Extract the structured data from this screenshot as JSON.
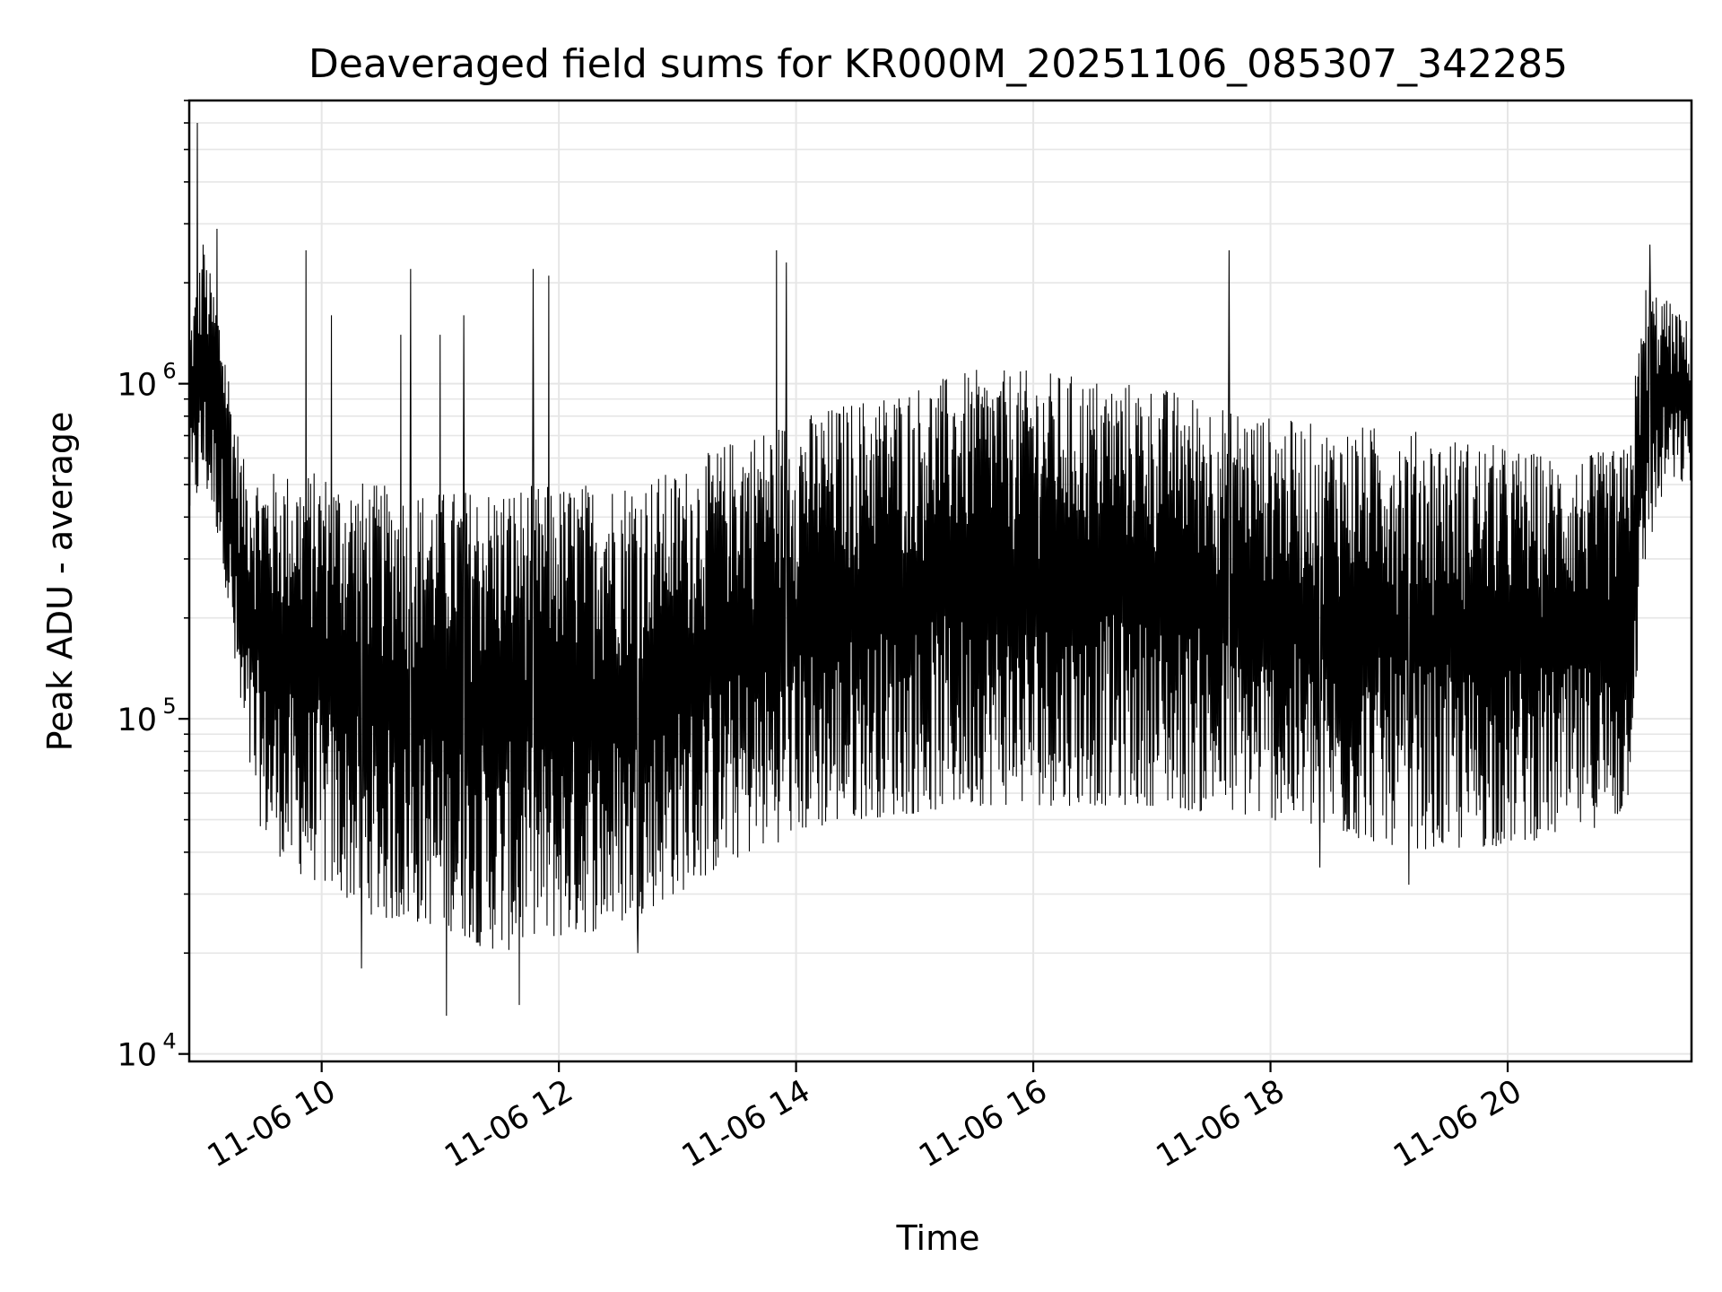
{
  "chart_data": {
    "type": "line",
    "title": "Deaveraged field sums for KR000M_20251106_085307_342285",
    "xlabel": "Time",
    "ylabel": "Peak ADU - average",
    "xlim": [
      "2025-11-06 08:53",
      "2025-11-06 21:33"
    ],
    "ylim": [
      9500,
      7000000
    ],
    "yscale": "log",
    "grid": true,
    "line_color": "#000000",
    "grid_color": "#e6e6e6",
    "x_ticks": [
      "2025-11-06 10:00",
      "2025-11-06 12:00",
      "2025-11-06 14:00",
      "2025-11-06 16:00",
      "2025-11-06 18:00",
      "2025-11-06 20:00"
    ],
    "x_tick_labels": [
      "11-06 10",
      "11-06 12",
      "11-06 14",
      "11-06 16",
      "11-06 18",
      "11-06 20"
    ],
    "y_ticks": [
      10000,
      100000,
      1000000
    ],
    "y_tick_labels": [
      {
        "base": "10",
        "exp": "4"
      },
      {
        "base": "10",
        "exp": "5"
      },
      {
        "base": "10",
        "exp": "6"
      }
    ],
    "series": [
      {
        "x": [
          "2025-11-06 08:53",
          "2025-11-06 09:00",
          "2025-11-06 09:05",
          "2025-11-06 09:10",
          "2025-11-06 09:15",
          "2025-11-06 09:20",
          "2025-11-06 09:30",
          "2025-11-06 09:45",
          "2025-11-06 10:00",
          "2025-11-06 10:30",
          "2025-11-06 11:00",
          "2025-11-06 11:30",
          "2025-11-06 12:00",
          "2025-11-06 12:30",
          "2025-11-06 13:00",
          "2025-11-06 13:30",
          "2025-11-06 14:00",
          "2025-11-06 14:30",
          "2025-11-06 15:00",
          "2025-11-06 15:30",
          "2025-11-06 16:00",
          "2025-11-06 16:30",
          "2025-11-06 17:00",
          "2025-11-06 17:30",
          "2025-11-06 18:00",
          "2025-11-06 18:30",
          "2025-11-06 19:00",
          "2025-11-06 19:30",
          "2025-11-06 20:00",
          "2025-11-06 20:30",
          "2025-11-06 21:00",
          "2025-11-06 21:10",
          "2025-11-06 21:20",
          "2025-11-06 21:33"
        ],
        "low": [
          380000,
          500000,
          400000,
          300000,
          150000,
          80000,
          45000,
          35000,
          32000,
          25000,
          24000,
          20000,
          22000,
          24000,
          30000,
          38000,
          45000,
          50000,
          52000,
          55000,
          55000,
          55000,
          55000,
          52000,
          50000,
          45000,
          42000,
          40000,
          42000,
          45000,
          50000,
          300000,
          500000,
          500000
        ],
        "high": [
          1500000,
          2600000,
          2000000,
          1500000,
          900000,
          600000,
          550000,
          550000,
          550000,
          500000,
          480000,
          500000,
          500000,
          520000,
          550000,
          700000,
          800000,
          900000,
          1000000,
          1100000,
          1100000,
          1050000,
          1000000,
          900000,
          800000,
          750000,
          750000,
          700000,
          650000,
          600000,
          650000,
          2000000,
          1800000,
          1500000
        ],
        "spikes": [
          {
            "x": "2025-11-06 08:57",
            "y": 6000000
          },
          {
            "x": "2025-11-06 09:00",
            "y": 2600000
          },
          {
            "x": "2025-11-06 09:07",
            "y": 2900000
          },
          {
            "x": "2025-11-06 09:52",
            "y": 2500000
          },
          {
            "x": "2025-11-06 10:05",
            "y": 1600000
          },
          {
            "x": "2025-11-06 10:40",
            "y": 1400000
          },
          {
            "x": "2025-11-06 10:45",
            "y": 2200000
          },
          {
            "x": "2025-11-06 11:00",
            "y": 1400000
          },
          {
            "x": "2025-11-06 11:12",
            "y": 1600000
          },
          {
            "x": "2025-11-06 11:47",
            "y": 2200000
          },
          {
            "x": "2025-11-06 11:55",
            "y": 2100000
          },
          {
            "x": "2025-11-06 13:50",
            "y": 2500000
          },
          {
            "x": "2025-11-06 13:55",
            "y": 2300000
          },
          {
            "x": "2025-11-06 17:39",
            "y": 2500000
          },
          {
            "x": "2025-11-06 21:12",
            "y": 2600000
          }
        ],
        "dips": [
          {
            "x": "2025-11-06 11:03",
            "y": 13000
          },
          {
            "x": "2025-11-06 11:40",
            "y": 14000
          },
          {
            "x": "2025-11-06 10:20",
            "y": 18000
          },
          {
            "x": "2025-11-06 11:20",
            "y": 21000
          },
          {
            "x": "2025-11-06 12:40",
            "y": 20000
          },
          {
            "x": "2025-11-06 19:10",
            "y": 32000
          },
          {
            "x": "2025-11-06 18:25",
            "y": 36000
          }
        ]
      }
    ]
  }
}
